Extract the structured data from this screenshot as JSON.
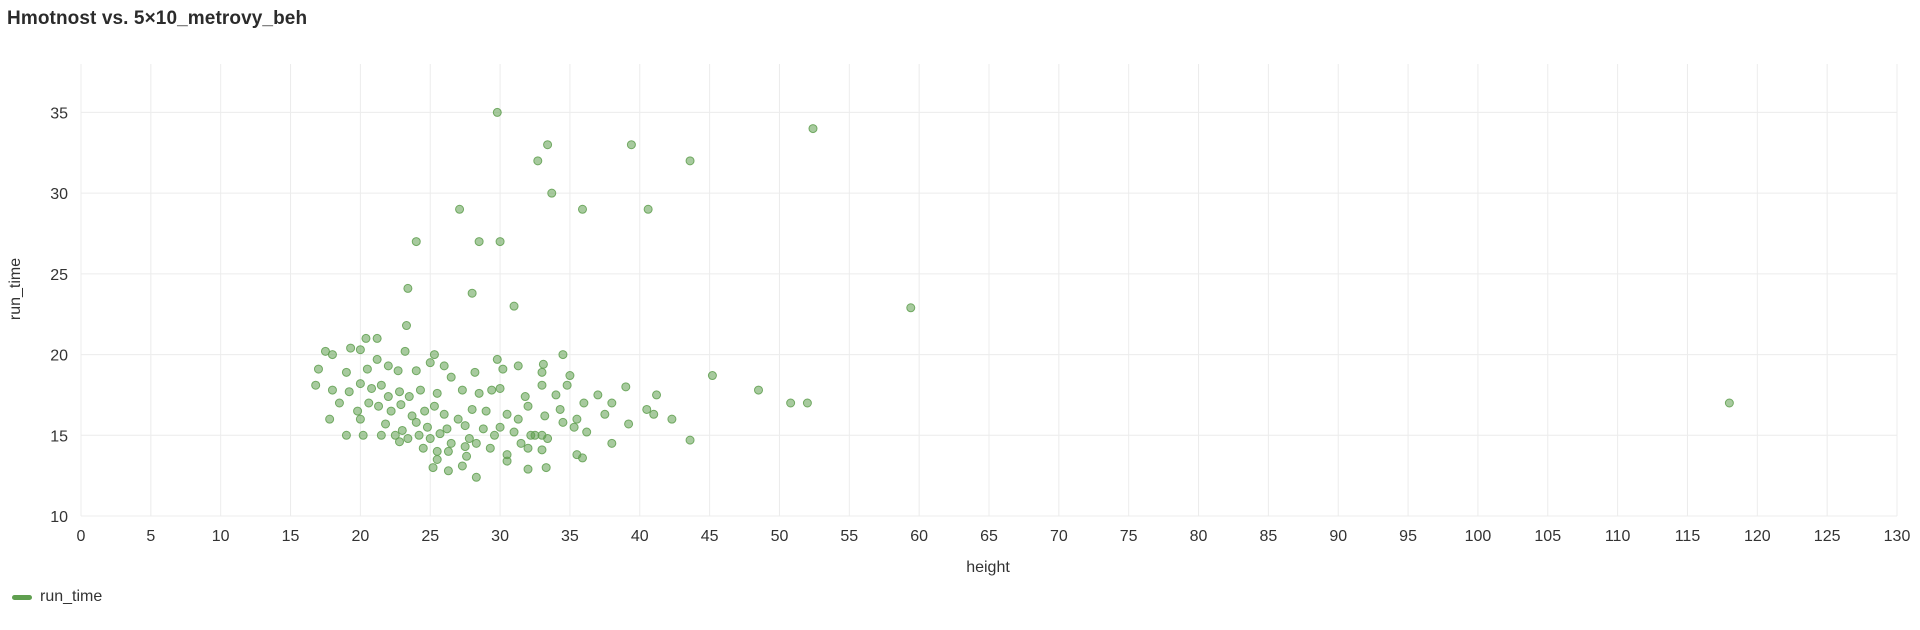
{
  "page": {
    "title": "Hmotnost vs. 5×10_metrovy_beh"
  },
  "legend": {
    "items": [
      {
        "label": "run_time",
        "color": "#5f9f4f"
      }
    ]
  },
  "chart_data": {
    "type": "scatter",
    "title": "Hmotnost vs. 5×10_metrovy_beh",
    "xlabel": "height",
    "ylabel": "run_time",
    "xlim": [
      0,
      130
    ],
    "ylim": [
      10,
      38
    ],
    "xticks": [
      0,
      5,
      10,
      15,
      20,
      25,
      30,
      35,
      40,
      45,
      50,
      55,
      60,
      65,
      70,
      75,
      80,
      85,
      90,
      95,
      100,
      105,
      110,
      115,
      120,
      125,
      130
    ],
    "yticks": [
      10,
      15,
      20,
      25,
      30,
      35
    ],
    "grid": true,
    "legend_position": "bottom-left",
    "series": [
      {
        "name": "run_time",
        "color": "#5f9f4f",
        "points": [
          [
            29.8,
            35.0
          ],
          [
            33.4,
            33.0
          ],
          [
            52.4,
            34.0
          ],
          [
            39.4,
            33.0
          ],
          [
            43.6,
            32.0
          ],
          [
            32.7,
            32.0
          ],
          [
            33.7,
            30.0
          ],
          [
            27.1,
            29.0
          ],
          [
            35.9,
            29.0
          ],
          [
            40.6,
            29.0
          ],
          [
            24.0,
            27.0
          ],
          [
            28.5,
            27.0
          ],
          [
            30.0,
            27.0
          ],
          [
            23.4,
            24.1
          ],
          [
            28.0,
            23.8
          ],
          [
            31.0,
            23.0
          ],
          [
            59.4,
            22.9
          ],
          [
            23.3,
            21.8
          ],
          [
            17.5,
            20.2
          ],
          [
            18.0,
            20.0
          ],
          [
            19.3,
            20.4
          ],
          [
            20.4,
            21.0
          ],
          [
            21.2,
            21.0
          ],
          [
            20.0,
            20.3
          ],
          [
            23.2,
            20.2
          ],
          [
            25.3,
            20.0
          ],
          [
            29.8,
            19.7
          ],
          [
            34.5,
            20.0
          ],
          [
            33.1,
            19.4
          ],
          [
            31.3,
            19.3
          ],
          [
            17.0,
            19.1
          ],
          [
            19.0,
            18.9
          ],
          [
            20.5,
            19.1
          ],
          [
            21.2,
            19.7
          ],
          [
            22.0,
            19.3
          ],
          [
            22.7,
            19.0
          ],
          [
            24.0,
            19.0
          ],
          [
            25.0,
            19.5
          ],
          [
            26.0,
            19.3
          ],
          [
            28.2,
            18.9
          ],
          [
            30.2,
            19.1
          ],
          [
            33.0,
            18.9
          ],
          [
            35.0,
            18.7
          ],
          [
            45.2,
            18.7
          ],
          [
            16.8,
            18.1
          ],
          [
            18.0,
            17.8
          ],
          [
            19.2,
            17.7
          ],
          [
            20.0,
            18.2
          ],
          [
            20.8,
            17.9
          ],
          [
            21.5,
            18.1
          ],
          [
            22.0,
            17.4
          ],
          [
            22.8,
            17.7
          ],
          [
            23.5,
            17.4
          ],
          [
            24.3,
            17.8
          ],
          [
            25.5,
            17.6
          ],
          [
            26.5,
            18.6
          ],
          [
            27.3,
            17.8
          ],
          [
            28.5,
            17.6
          ],
          [
            29.4,
            17.8
          ],
          [
            30.0,
            17.9
          ],
          [
            31.8,
            17.4
          ],
          [
            33.0,
            18.1
          ],
          [
            34.0,
            17.5
          ],
          [
            34.8,
            18.1
          ],
          [
            36.0,
            17.0
          ],
          [
            37.0,
            17.5
          ],
          [
            38.0,
            17.0
          ],
          [
            39.0,
            18.0
          ],
          [
            41.2,
            17.5
          ],
          [
            48.5,
            17.8
          ],
          [
            50.8,
            17.0
          ],
          [
            52.0,
            17.0
          ],
          [
            118.0,
            17.0
          ],
          [
            18.5,
            17.0
          ],
          [
            19.8,
            16.5
          ],
          [
            20.6,
            17.0
          ],
          [
            21.3,
            16.8
          ],
          [
            22.2,
            16.5
          ],
          [
            22.9,
            16.9
          ],
          [
            23.7,
            16.2
          ],
          [
            24.6,
            16.5
          ],
          [
            25.3,
            16.8
          ],
          [
            26.0,
            16.3
          ],
          [
            27.0,
            16.0
          ],
          [
            28.0,
            16.6
          ],
          [
            29.0,
            16.5
          ],
          [
            30.5,
            16.3
          ],
          [
            31.3,
            16.0
          ],
          [
            32.0,
            16.8
          ],
          [
            33.2,
            16.2
          ],
          [
            34.3,
            16.6
          ],
          [
            35.5,
            16.0
          ],
          [
            37.5,
            16.3
          ],
          [
            40.5,
            16.6
          ],
          [
            41.0,
            16.3
          ],
          [
            42.3,
            16.0
          ],
          [
            17.8,
            16.0
          ],
          [
            20.0,
            16.0
          ],
          [
            21.8,
            15.7
          ],
          [
            23.0,
            15.3
          ],
          [
            24.0,
            15.8
          ],
          [
            24.8,
            15.5
          ],
          [
            26.2,
            15.4
          ],
          [
            27.5,
            15.6
          ],
          [
            28.8,
            15.4
          ],
          [
            30.0,
            15.5
          ],
          [
            31.0,
            15.2
          ],
          [
            32.2,
            15.0
          ],
          [
            33.0,
            15.0
          ],
          [
            34.5,
            15.8
          ],
          [
            35.3,
            15.5
          ],
          [
            36.2,
            15.2
          ],
          [
            39.2,
            15.7
          ],
          [
            19.0,
            15.0
          ],
          [
            20.2,
            15.0
          ],
          [
            21.5,
            15.0
          ],
          [
            22.5,
            15.0
          ],
          [
            23.4,
            14.8
          ],
          [
            24.2,
            15.0
          ],
          [
            25.0,
            14.8
          ],
          [
            25.7,
            15.1
          ],
          [
            26.5,
            14.5
          ],
          [
            27.8,
            14.8
          ],
          [
            29.6,
            15.0
          ],
          [
            31.5,
            14.5
          ],
          [
            32.5,
            15.0
          ],
          [
            33.4,
            14.8
          ],
          [
            38.0,
            14.5
          ],
          [
            43.6,
            14.7
          ],
          [
            22.8,
            14.6
          ],
          [
            24.5,
            14.2
          ],
          [
            25.5,
            14.0
          ],
          [
            26.3,
            14.0
          ],
          [
            27.5,
            14.3
          ],
          [
            28.3,
            14.5
          ],
          [
            29.3,
            14.2
          ],
          [
            30.5,
            13.8
          ],
          [
            32.0,
            14.2
          ],
          [
            33.0,
            14.1
          ],
          [
            35.5,
            13.8
          ],
          [
            25.5,
            13.5
          ],
          [
            27.6,
            13.7
          ],
          [
            30.5,
            13.4
          ],
          [
            35.9,
            13.6
          ],
          [
            25.2,
            13.0
          ],
          [
            26.3,
            12.8
          ],
          [
            27.3,
            13.1
          ],
          [
            28.3,
            12.4
          ],
          [
            32.0,
            12.9
          ],
          [
            33.3,
            13.0
          ]
        ]
      }
    ]
  }
}
